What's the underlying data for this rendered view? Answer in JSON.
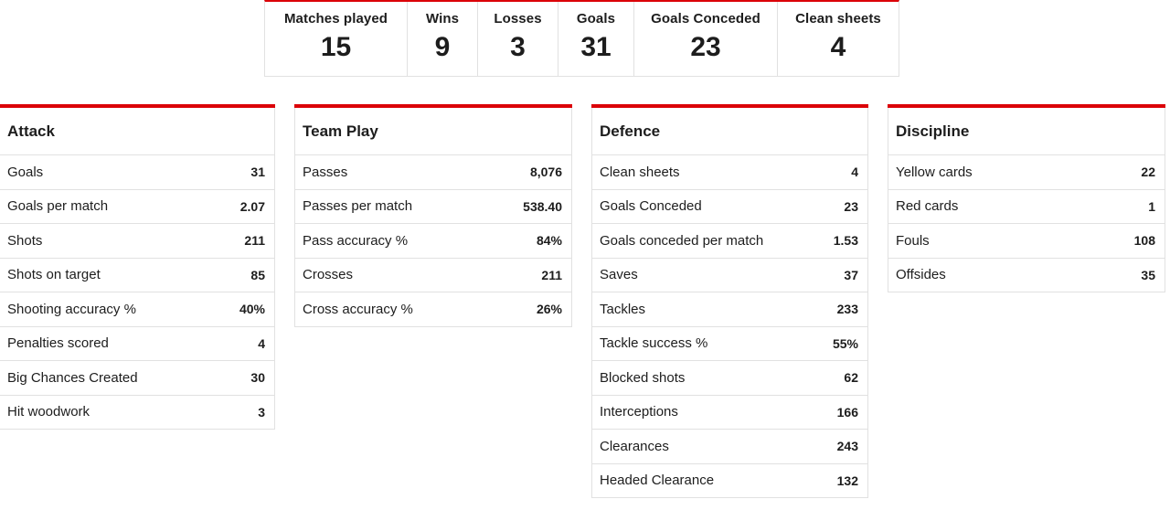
{
  "summary": {
    "items": [
      {
        "label": "Matches played",
        "value": "15"
      },
      {
        "label": "Wins",
        "value": "9"
      },
      {
        "label": "Losses",
        "value": "3"
      },
      {
        "label": "Goals",
        "value": "31"
      },
      {
        "label": "Goals Conceded",
        "value": "23"
      },
      {
        "label": "Clean sheets",
        "value": "4"
      }
    ]
  },
  "accent_color": "#db0007",
  "attack": {
    "title": "Attack",
    "rows": [
      {
        "label": "Goals",
        "value": "31"
      },
      {
        "label": "Goals per match",
        "value": "2.07"
      },
      {
        "label": "Shots",
        "value": "211"
      },
      {
        "label": "Shots on target",
        "value": "85"
      },
      {
        "label": "Shooting accuracy %",
        "value": "40%"
      },
      {
        "label": "Penalties scored",
        "value": "4"
      },
      {
        "label": "Big Chances Created",
        "value": "30"
      },
      {
        "label": "Hit woodwork",
        "value": "3"
      }
    ]
  },
  "teamplay": {
    "title": "Team Play",
    "rows": [
      {
        "label": "Passes",
        "value": "8,076"
      },
      {
        "label": "Passes per match",
        "value": "538.40"
      },
      {
        "label": "Pass accuracy %",
        "value": "84%"
      },
      {
        "label": "Crosses",
        "value": "211"
      },
      {
        "label": "Cross accuracy %",
        "value": "26%"
      }
    ]
  },
  "defence": {
    "title": "Defence",
    "rows": [
      {
        "label": "Clean sheets",
        "value": "4"
      },
      {
        "label": "Goals Conceded",
        "value": "23"
      },
      {
        "label": "Goals conceded per match",
        "value": "1.53"
      },
      {
        "label": "Saves",
        "value": "37"
      },
      {
        "label": "Tackles",
        "value": "233"
      },
      {
        "label": "Tackle success %",
        "value": "55%"
      },
      {
        "label": "Blocked shots",
        "value": "62"
      },
      {
        "label": "Interceptions",
        "value": "166"
      },
      {
        "label": "Clearances",
        "value": "243"
      },
      {
        "label": "Headed Clearance",
        "value": "132"
      }
    ]
  },
  "discipline": {
    "title": "Discipline",
    "rows": [
      {
        "label": "Yellow cards",
        "value": "22"
      },
      {
        "label": "Red cards",
        "value": "1"
      },
      {
        "label": "Fouls",
        "value": "108"
      },
      {
        "label": "Offsides",
        "value": "35"
      }
    ]
  }
}
